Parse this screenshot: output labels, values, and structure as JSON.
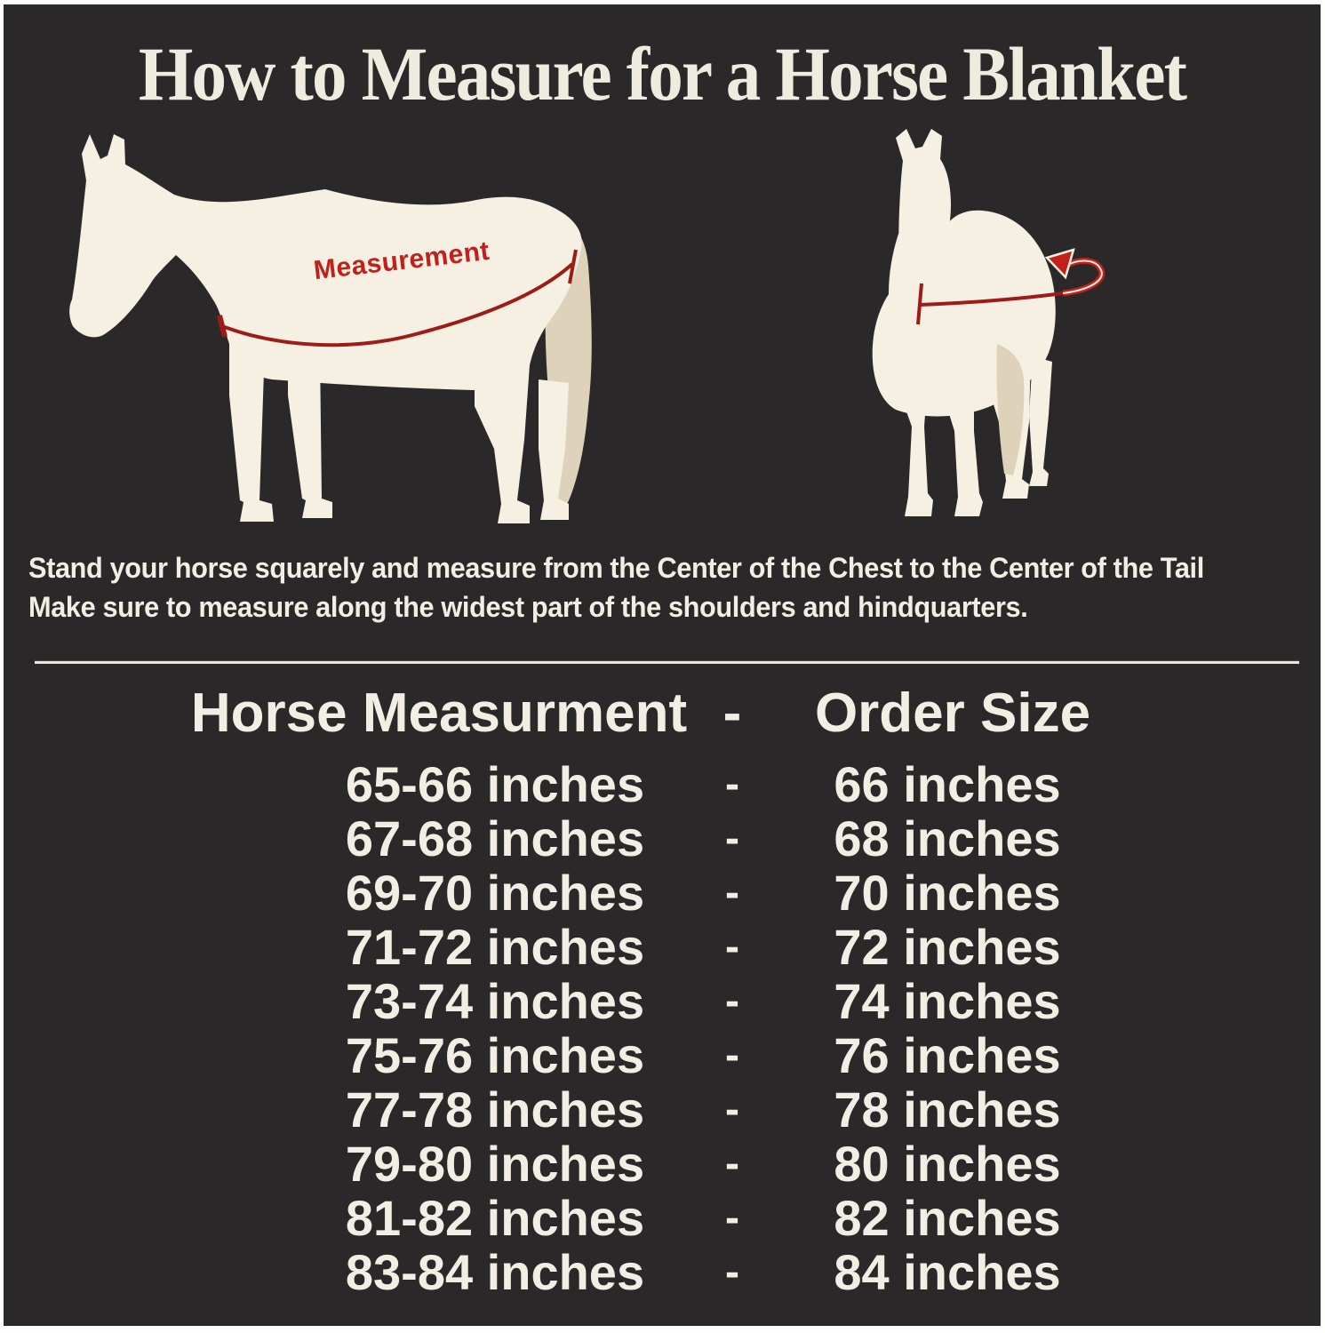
{
  "title": "How to Measure for a Horse Blanket",
  "diagram": {
    "measurement_label": "Measurement",
    "side_view": "horse-side-silhouette",
    "front_view": "horse-front-silhouette"
  },
  "instructions": {
    "line1": "Stand your horse squarely and measure from the Center of the Chest to the Center of the Tail",
    "line2": "Make sure to measure along the widest part of the shoulders and hindquarters."
  },
  "size_table": {
    "header": {
      "measurement": "Horse Measurment",
      "separator": "-",
      "order": "Order Size"
    },
    "rows": [
      {
        "measurement": "65-66 inches",
        "separator": "-",
        "order": "66 inches"
      },
      {
        "measurement": "67-68 inches",
        "separator": "-",
        "order": "68 inches"
      },
      {
        "measurement": "69-70 inches",
        "separator": "-",
        "order": "70 inches"
      },
      {
        "measurement": "71-72 inches",
        "separator": "-",
        "order": "72 inches"
      },
      {
        "measurement": "73-74 inches",
        "separator": "-",
        "order": "74 inches"
      },
      {
        "measurement": "75-76 inches",
        "separator": "-",
        "order": "76 inches"
      },
      {
        "measurement": "77-78 inches",
        "separator": "-",
        "order": "78 inches"
      },
      {
        "measurement": "79-80 inches",
        "separator": "-",
        "order": "80 inches"
      },
      {
        "measurement": "81-82 inches",
        "separator": "-",
        "order": "82 inches"
      },
      {
        "measurement": "83-84 inches",
        "separator": "-",
        "order": "84 inches"
      }
    ]
  },
  "colors": {
    "background": "#2A2829",
    "frame_border": "#FDFDFC",
    "text_cream": "#F2EEE3",
    "title_cream": "#EFEBDF",
    "accent_red": "#C2201D",
    "line_red": "#9E1B18",
    "horse_body": "#F6F0E2",
    "horse_tail_beige": "#DFD2BB",
    "divider": "#E9E6DE"
  }
}
